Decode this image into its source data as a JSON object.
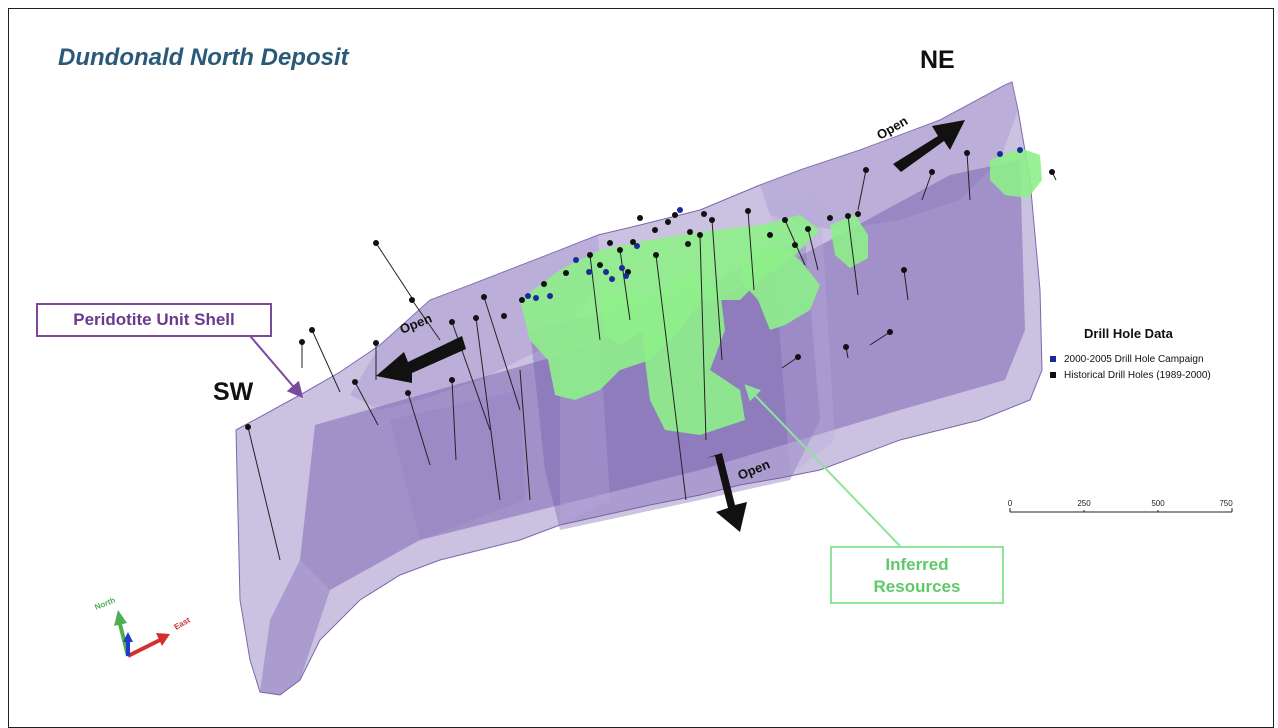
{
  "title": "Dundonald North Deposit",
  "directions": {
    "ne": "NE",
    "sw": "SW"
  },
  "open_label": "Open",
  "callouts": {
    "peridotite": "Peridotite Unit Shell",
    "inferred_line1": "Inferred",
    "inferred_line2": "Resources"
  },
  "legend": {
    "title": "Drill Hole Data",
    "items": [
      {
        "label": "2000-2005 Drill Hole Campaign",
        "color": "#1a2a9a"
      },
      {
        "label": "Historical Drill Holes (1989-2000)",
        "color": "#111111"
      }
    ]
  },
  "scale_bar": {
    "ticks": [
      "0",
      "250",
      "500",
      "750"
    ]
  },
  "orientation": {
    "north": "North",
    "east": "East"
  },
  "colors": {
    "shell_fill": "#8c78be",
    "shell_dark": "#6e56a8",
    "resource_green": "#8ef08a",
    "title_blue": "#2a5a78"
  }
}
